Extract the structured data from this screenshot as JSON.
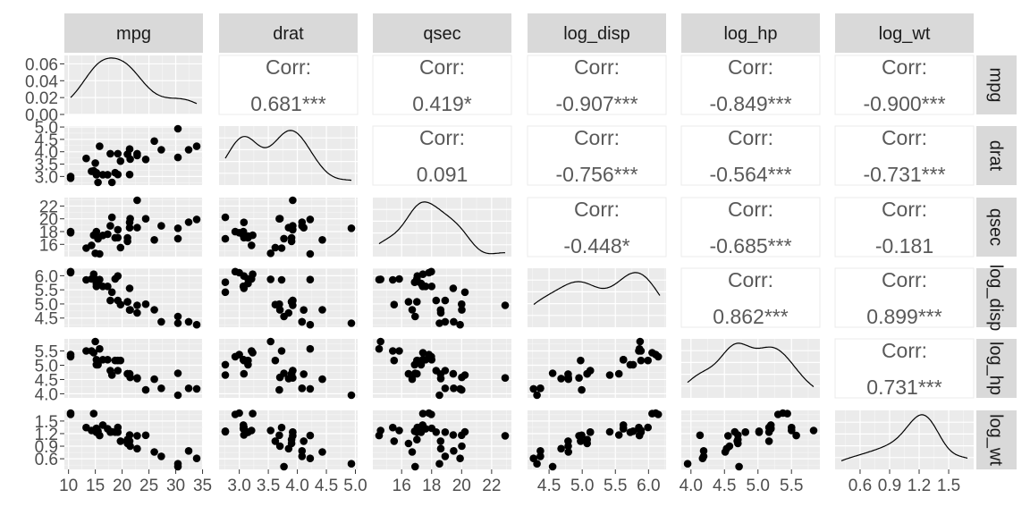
{
  "chart_data": {
    "type": "scatter",
    "title": "",
    "variables": [
      "mpg",
      "drat",
      "qsec",
      "log_disp",
      "log_hp",
      "log_wt"
    ],
    "strip_labels": {
      "top": [
        "mpg",
        "drat",
        "qsec",
        "log_disp",
        "log_hp",
        "log_wt"
      ],
      "right": [
        "mpg",
        "drat",
        "qsec",
        "log_disp",
        "log_hp",
        "log_wt"
      ]
    },
    "ranges": {
      "mpg": [
        10.4,
        33.9
      ],
      "drat": [
        2.76,
        4.93
      ],
      "qsec": [
        14.5,
        22.9
      ],
      "log_disp": [
        4.27,
        6.17
      ],
      "log_hp": [
        3.95,
        5.83
      ],
      "log_wt": [
        0.41,
        1.69
      ]
    },
    "x_ticks": {
      "mpg": [
        "10",
        "15",
        "20",
        "25",
        "30",
        "35"
      ],
      "drat": [
        "3.0",
        "3.5",
        "4.0",
        "4.5",
        "5.0"
      ],
      "qsec": [
        "16",
        "18",
        "20",
        "22"
      ],
      "log_disp": [
        "4.5",
        "5.0",
        "5.5",
        "6.0"
      ],
      "log_hp": [
        "4.0",
        "4.5",
        "5.0",
        "5.5"
      ],
      "log_wt": [
        "0.6",
        "0.9",
        "1.2",
        "1.5"
      ]
    },
    "y_ticks": {
      "mpg_density": [
        "0.00",
        "0.02",
        "0.04",
        "0.06"
      ],
      "drat": [
        "3.0",
        "3.5",
        "4.0",
        "4.5",
        "5.0"
      ],
      "qsec": [
        "16",
        "18",
        "20",
        "22"
      ],
      "log_disp": [
        "4.5",
        "5.0",
        "5.5",
        "6.0"
      ],
      "log_hp": [
        "4.0",
        "4.5",
        "5.0",
        "5.5"
      ],
      "log_wt": [
        "0.6",
        "0.9",
        "1.2",
        "1.5"
      ]
    },
    "density_ylim": [
      0,
      0.07
    ],
    "correlations": [
      {
        "row": "mpg",
        "col": "drat",
        "label": "Corr:",
        "value": "0.681***"
      },
      {
        "row": "mpg",
        "col": "qsec",
        "label": "Corr:",
        "value": "0.419*"
      },
      {
        "row": "mpg",
        "col": "log_disp",
        "label": "Corr:",
        "value": "-0.907***"
      },
      {
        "row": "mpg",
        "col": "log_hp",
        "label": "Corr:",
        "value": "-0.849***"
      },
      {
        "row": "mpg",
        "col": "log_wt",
        "label": "Corr:",
        "value": "-0.900***"
      },
      {
        "row": "drat",
        "col": "qsec",
        "label": "Corr:",
        "value": "0.091"
      },
      {
        "row": "drat",
        "col": "log_disp",
        "label": "Corr:",
        "value": "-0.756***"
      },
      {
        "row": "drat",
        "col": "log_hp",
        "label": "Corr:",
        "value": "-0.564***"
      },
      {
        "row": "drat",
        "col": "log_wt",
        "label": "Corr:",
        "value": "-0.731***"
      },
      {
        "row": "qsec",
        "col": "log_disp",
        "label": "Corr:",
        "value": "-0.448*"
      },
      {
        "row": "qsec",
        "col": "log_hp",
        "label": "Corr:",
        "value": "-0.685***"
      },
      {
        "row": "qsec",
        "col": "log_wt",
        "label": "Corr:",
        "value": "-0.181"
      },
      {
        "row": "log_disp",
        "col": "log_hp",
        "label": "Corr:",
        "value": "0.862***"
      },
      {
        "row": "log_disp",
        "col": "log_wt",
        "label": "Corr:",
        "value": "0.899***"
      },
      {
        "row": "log_hp",
        "col": "log_wt",
        "label": "Corr:",
        "value": "0.731***"
      }
    ],
    "points": {
      "mpg": [
        21,
        21,
        22.8,
        21.4,
        18.7,
        18.1,
        14.3,
        24.4,
        22.8,
        19.2,
        17.8,
        16.4,
        17.3,
        15.2,
        10.4,
        10.4,
        14.7,
        32.4,
        30.4,
        33.9,
        21.5,
        15.5,
        15.2,
        13.3,
        19.2,
        27.3,
        26,
        30.4,
        15.8,
        19.7,
        15,
        21.4
      ],
      "drat": [
        3.9,
        3.9,
        3.85,
        3.08,
        3.15,
        2.76,
        3.21,
        3.69,
        3.92,
        3.92,
        3.92,
        3.07,
        3.07,
        3.07,
        2.93,
        3,
        3.23,
        4.08,
        4.93,
        4.22,
        3.7,
        2.76,
        3.15,
        3.73,
        3.08,
        4.08,
        4.43,
        3.77,
        4.22,
        3.62,
        3.54,
        4.11
      ],
      "qsec": [
        16.46,
        17.02,
        18.61,
        19.44,
        17.02,
        20.22,
        15.84,
        20,
        22.9,
        18.3,
        18.9,
        17.4,
        17.6,
        18,
        17.98,
        17.82,
        17.42,
        19.47,
        18.52,
        19.9,
        20.01,
        16.87,
        17.3,
        15.41,
        17.05,
        18.9,
        16.7,
        16.9,
        14.5,
        15.5,
        14.6,
        18.6
      ],
      "log_disp": [
        5.075,
        5.075,
        4.682,
        5.553,
        5.886,
        5.416,
        5.886,
        4.992,
        4.951,
        5.121,
        5.121,
        5.621,
        5.621,
        5.621,
        6.146,
        6.108,
        6.054,
        4.369,
        4.318,
        4.265,
        4.788,
        5.768,
        5.724,
        5.854,
        5.991,
        4.369,
        4.791,
        4.554,
        5.863,
        4.976,
        5.872,
        4.787
      ],
      "log_hp": [
        4.7,
        4.7,
        4.533,
        4.7,
        5.165,
        4.654,
        5.501,
        4.135,
        4.554,
        4.812,
        4.812,
        5.193,
        5.193,
        5.193,
        5.3,
        5.371,
        5.438,
        4.19,
        3.951,
        4.174,
        4.575,
        5.017,
        5.017,
        5.501,
        5.165,
        4.19,
        4.511,
        4.718,
        5.572,
        5.165,
        5.83,
        4.691
      ],
      "log_wt": [
        0.964,
        1.056,
        0.842,
        1.168,
        1.235,
        1.241,
        1.274,
        1.162,
        1.149,
        1.235,
        1.235,
        1.404,
        1.315,
        1.327,
        1.658,
        1.69,
        1.677,
        0.788,
        0.481,
        0.608,
        0.9,
        1.258,
        1.233,
        1.345,
        1.347,
        0.657,
        0.761,
        0.413,
        1.154,
        1.02,
        1.275,
        1.021
      ]
    }
  }
}
